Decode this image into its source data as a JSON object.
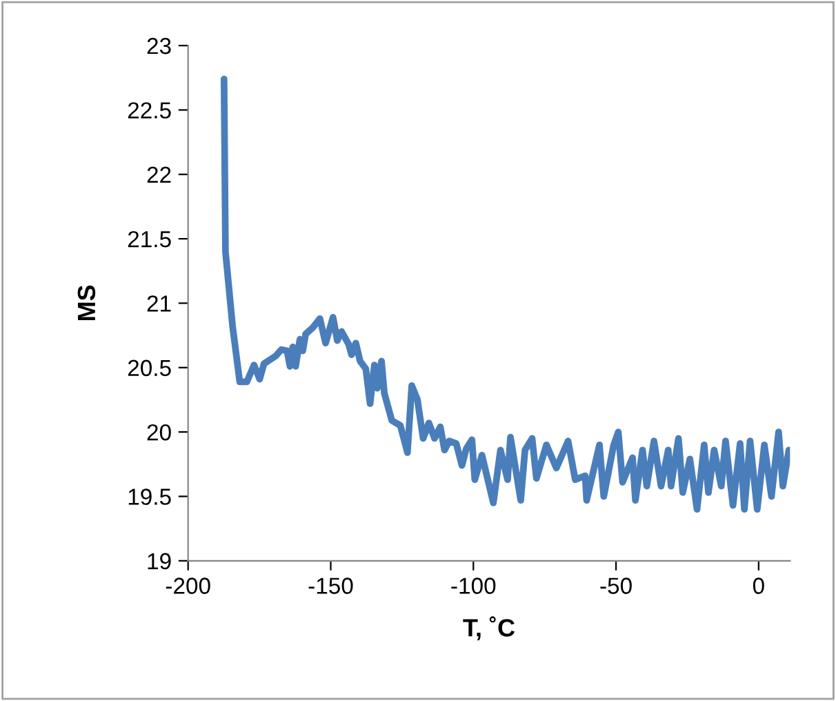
{
  "chart_data": {
    "type": "line",
    "xlabel": "T, ˚C",
    "ylabel": "MS",
    "xlim": [
      -200,
      11
    ],
    "ylim": [
      19,
      23
    ],
    "xticks": [
      -200,
      -150,
      -100,
      -50,
      0
    ],
    "yticks": [
      19,
      19.5,
      20,
      20.5,
      21,
      21.5,
      22,
      22.5,
      23
    ],
    "grid": false,
    "legend": false,
    "marker": "none",
    "line_style": "solid",
    "series": [
      {
        "color": "#4a7ebb",
        "x": [
          -187.4,
          -186.9,
          -184.4,
          -181.9,
          -179.4,
          -176.9,
          -174.9,
          -173.4,
          -169.3,
          -167.3,
          -165.3,
          -164.3,
          -163.3,
          -162.3,
          -160.8,
          -159.8,
          -158.8,
          -156.3,
          -153.8,
          -151.8,
          -149.2,
          -147.7,
          -146.2,
          -143.7,
          -142.7,
          -141.2,
          -139.7,
          -137.7,
          -136.2,
          -134.7,
          -133.7,
          -132.2,
          -131.2,
          -128.6,
          -125.6,
          -123.1,
          -121.6,
          -119.6,
          -117.6,
          -115.6,
          -113.6,
          -111.6,
          -110.1,
          -108.5,
          -106.0,
          -104.0,
          -102.5,
          -100.5,
          -99.5,
          -97.0,
          -93.0,
          -90.5,
          -88.0,
          -87.0,
          -83.4,
          -81.9,
          -79.4,
          -77.9,
          -74.4,
          -70.9,
          -66.8,
          -64.3,
          -60.8,
          -60.3,
          -55.8,
          -54.3,
          -50.8,
          -49.2,
          -47.7,
          -44.2,
          -43.2,
          -40.7,
          -39.2,
          -36.7,
          -34.2,
          -31.7,
          -30.7,
          -28.1,
          -26.6,
          -24.1,
          -21.6,
          -19.1,
          -17.6,
          -15.6,
          -13.1,
          -11.6,
          -9.0,
          -6.5,
          -5.0,
          -3.0,
          -0.5,
          2.0,
          4.5,
          7.0,
          8.5,
          10.6
        ],
        "values": [
          22.74,
          21.4,
          20.82,
          20.39,
          20.39,
          20.52,
          20.41,
          20.53,
          20.59,
          20.64,
          20.63,
          20.51,
          20.66,
          20.51,
          20.72,
          20.63,
          20.76,
          20.81,
          20.88,
          20.69,
          20.89,
          20.71,
          20.78,
          20.68,
          20.6,
          20.69,
          20.55,
          20.49,
          20.22,
          20.52,
          20.34,
          20.55,
          20.3,
          20.09,
          20.05,
          19.84,
          20.36,
          20.25,
          19.95,
          20.07,
          19.95,
          20.04,
          19.86,
          19.93,
          19.91,
          19.74,
          19.87,
          19.94,
          19.63,
          19.82,
          19.45,
          19.86,
          19.63,
          19.96,
          19.47,
          19.86,
          19.95,
          19.64,
          19.9,
          19.72,
          19.93,
          19.63,
          19.66,
          19.47,
          19.9,
          19.5,
          19.9,
          20.0,
          19.61,
          19.8,
          19.47,
          19.86,
          19.58,
          19.93,
          19.58,
          19.86,
          19.58,
          19.95,
          19.53,
          19.79,
          19.4,
          19.9,
          19.53,
          19.86,
          19.58,
          19.93,
          19.43,
          19.91,
          19.4,
          19.93,
          19.4,
          19.9,
          19.5,
          20.0,
          19.58,
          19.86
        ]
      }
    ]
  }
}
